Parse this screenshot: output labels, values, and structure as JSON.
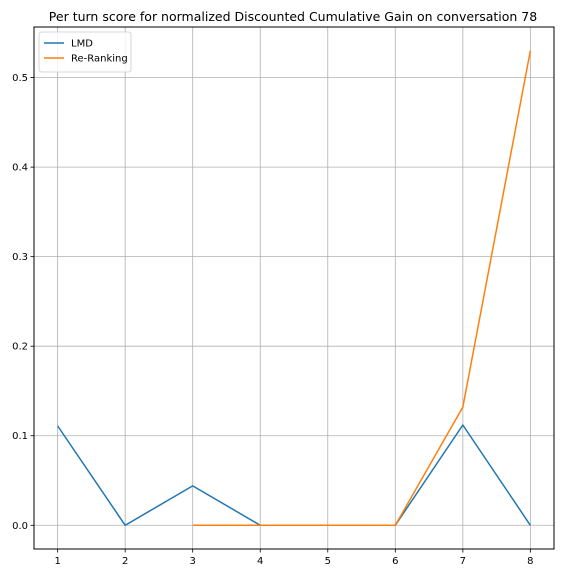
{
  "chart_data": {
    "type": "line",
    "title": "Per turn score for normalized Discounted Cumulative Gain on conversation 78",
    "xlabel": "",
    "ylabel": "",
    "x_ticks": [
      1,
      2,
      3,
      4,
      5,
      6,
      7,
      8
    ],
    "y_ticks": [
      0.0,
      0.1,
      0.2,
      0.3,
      0.4,
      0.5
    ],
    "y_tick_labels": [
      "0.0",
      "0.1",
      "0.2",
      "0.3",
      "0.4",
      "0.5"
    ],
    "xlim": [
      0.65,
      8.35
    ],
    "ylim": [
      -0.0265,
      0.5565
    ],
    "grid": true,
    "legend_position": "top-left",
    "series": [
      {
        "name": "LMD",
        "color": "#1f77b4",
        "x": [
          1,
          2,
          3,
          4,
          5,
          6,
          7,
          8
        ],
        "y": [
          0.111,
          0.0,
          0.044,
          0.0,
          0.0,
          0.0,
          0.112,
          0.0
        ]
      },
      {
        "name": "Re-Ranking",
        "color": "#ff7f0e",
        "x": [
          3,
          4,
          5,
          6,
          7,
          8
        ],
        "y": [
          0.0,
          0.0,
          0.0,
          0.0,
          0.132,
          0.53
        ]
      }
    ]
  }
}
